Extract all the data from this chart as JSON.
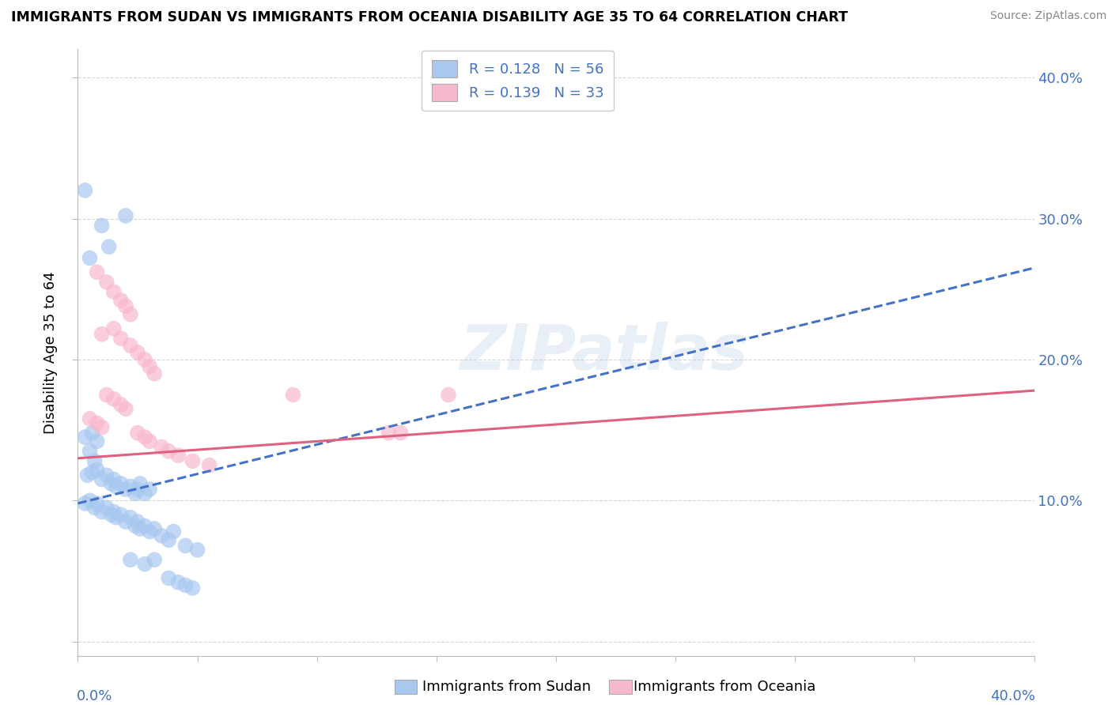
{
  "title": "IMMIGRANTS FROM SUDAN VS IMMIGRANTS FROM OCEANIA DISABILITY AGE 35 TO 64 CORRELATION CHART",
  "source": "Source: ZipAtlas.com",
  "ylabel": "Disability Age 35 to 64",
  "legend_sudan_r": "R = 0.128",
  "legend_sudan_n": "N = 56",
  "legend_oceania_r": "R = 0.139",
  "legend_oceania_n": "N = 33",
  "legend_label_sudan": "Immigrants from Sudan",
  "legend_label_oceania": "Immigrants from Oceania",
  "color_sudan": "#a8c8f0",
  "color_oceania": "#f8b8cc",
  "color_sudan_line": "#4472c4",
  "color_oceania_line": "#e06080",
  "color_text_blue": "#4472c4",
  "color_text_n": "#333333",
  "watermark": "ZIPatlas",
  "xlim": [
    0.0,
    0.4
  ],
  "ylim": [
    -0.01,
    0.42
  ],
  "yticks": [
    0.0,
    0.1,
    0.2,
    0.3,
    0.4
  ],
  "ytick_labels": [
    "",
    "10.0%",
    "20.0%",
    "30.0%",
    "40.0%"
  ],
  "xtick_label_left": "0.0%",
  "xtick_label_right": "40.0%",
  "sudan_points": [
    [
      0.003,
      0.32
    ],
    [
      0.01,
      0.295
    ],
    [
      0.013,
      0.28
    ],
    [
      0.005,
      0.272
    ],
    [
      0.02,
      0.302
    ],
    [
      0.003,
      0.145
    ],
    [
      0.006,
      0.148
    ],
    [
      0.008,
      0.142
    ],
    [
      0.005,
      0.135
    ],
    [
      0.007,
      0.128
    ],
    [
      0.004,
      0.118
    ],
    [
      0.006,
      0.12
    ],
    [
      0.008,
      0.122
    ],
    [
      0.01,
      0.115
    ],
    [
      0.012,
      0.118
    ],
    [
      0.014,
      0.112
    ],
    [
      0.015,
      0.115
    ],
    [
      0.016,
      0.11
    ],
    [
      0.018,
      0.112
    ],
    [
      0.02,
      0.108
    ],
    [
      0.022,
      0.11
    ],
    [
      0.024,
      0.105
    ],
    [
      0.025,
      0.108
    ],
    [
      0.026,
      0.112
    ],
    [
      0.028,
      0.105
    ],
    [
      0.03,
      0.108
    ],
    [
      0.003,
      0.098
    ],
    [
      0.005,
      0.1
    ],
    [
      0.007,
      0.095
    ],
    [
      0.008,
      0.098
    ],
    [
      0.01,
      0.092
    ],
    [
      0.012,
      0.095
    ],
    [
      0.014,
      0.09
    ],
    [
      0.015,
      0.092
    ],
    [
      0.016,
      0.088
    ],
    [
      0.018,
      0.09
    ],
    [
      0.02,
      0.085
    ],
    [
      0.022,
      0.088
    ],
    [
      0.024,
      0.082
    ],
    [
      0.025,
      0.085
    ],
    [
      0.026,
      0.08
    ],
    [
      0.028,
      0.082
    ],
    [
      0.03,
      0.078
    ],
    [
      0.032,
      0.08
    ],
    [
      0.035,
      0.075
    ],
    [
      0.038,
      0.072
    ],
    [
      0.04,
      0.078
    ],
    [
      0.045,
      0.068
    ],
    [
      0.05,
      0.065
    ],
    [
      0.022,
      0.058
    ],
    [
      0.028,
      0.055
    ],
    [
      0.032,
      0.058
    ],
    [
      0.038,
      0.045
    ],
    [
      0.042,
      0.042
    ],
    [
      0.045,
      0.04
    ],
    [
      0.048,
      0.038
    ]
  ],
  "oceania_points": [
    [
      0.008,
      0.262
    ],
    [
      0.012,
      0.255
    ],
    [
      0.015,
      0.248
    ],
    [
      0.018,
      0.242
    ],
    [
      0.02,
      0.238
    ],
    [
      0.022,
      0.232
    ],
    [
      0.01,
      0.218
    ],
    [
      0.015,
      0.222
    ],
    [
      0.018,
      0.215
    ],
    [
      0.022,
      0.21
    ],
    [
      0.025,
      0.205
    ],
    [
      0.028,
      0.2
    ],
    [
      0.03,
      0.195
    ],
    [
      0.032,
      0.19
    ],
    [
      0.012,
      0.175
    ],
    [
      0.015,
      0.172
    ],
    [
      0.018,
      0.168
    ],
    [
      0.02,
      0.165
    ],
    [
      0.005,
      0.158
    ],
    [
      0.008,
      0.155
    ],
    [
      0.01,
      0.152
    ],
    [
      0.025,
      0.148
    ],
    [
      0.028,
      0.145
    ],
    [
      0.03,
      0.142
    ],
    [
      0.035,
      0.138
    ],
    [
      0.038,
      0.135
    ],
    [
      0.042,
      0.132
    ],
    [
      0.048,
      0.128
    ],
    [
      0.055,
      0.125
    ],
    [
      0.09,
      0.175
    ],
    [
      0.13,
      0.148
    ],
    [
      0.135,
      0.148
    ],
    [
      0.155,
      0.175
    ]
  ]
}
